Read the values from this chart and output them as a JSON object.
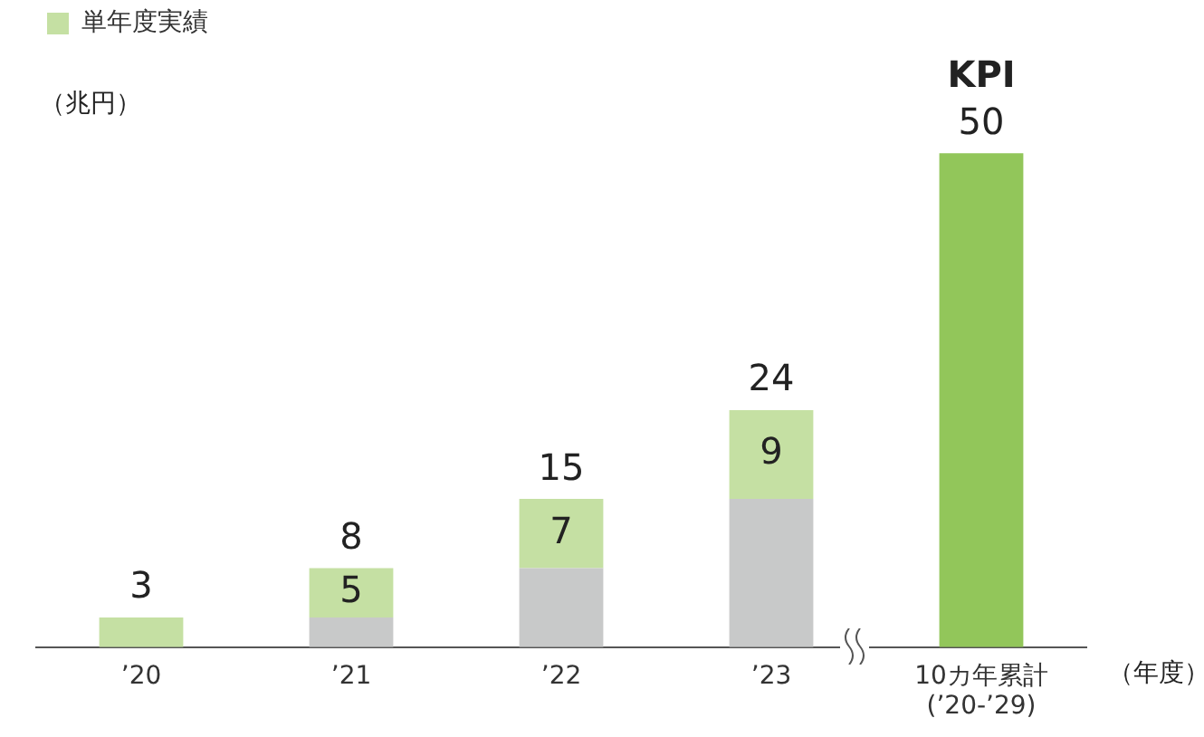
{
  "chart_data": {
    "type": "bar",
    "stacked": true,
    "legend": "top left",
    "ylabel": "（兆円）",
    "xlabel": "（年度）",
    "categories": [
      "’20",
      "’21",
      "’22",
      "’23",
      "10カ年累計\n(’20-’29)"
    ],
    "series": [
      {
        "color": "#c8c9c9",
        "values": [
          0,
          3,
          8,
          15,
          null
        ]
      },
      {
        "name": "単年度実績",
        "color": "#c5e0a3",
        "values": [
          3,
          5,
          7,
          9,
          null
        ],
        "value_labels": [
          null,
          "5",
          "7",
          "9",
          null
        ]
      },
      {
        "color": "#92c65a",
        "values": [
          null,
          null,
          null,
          null,
          50
        ]
      }
    ],
    "totals": [
      "3",
      "8",
      "15",
      "24",
      "50"
    ],
    "annotations": [
      {
        "text": "KPI",
        "x": "10カ年累計\n(’20-’29)",
        "y": 50
      }
    ]
  }
}
